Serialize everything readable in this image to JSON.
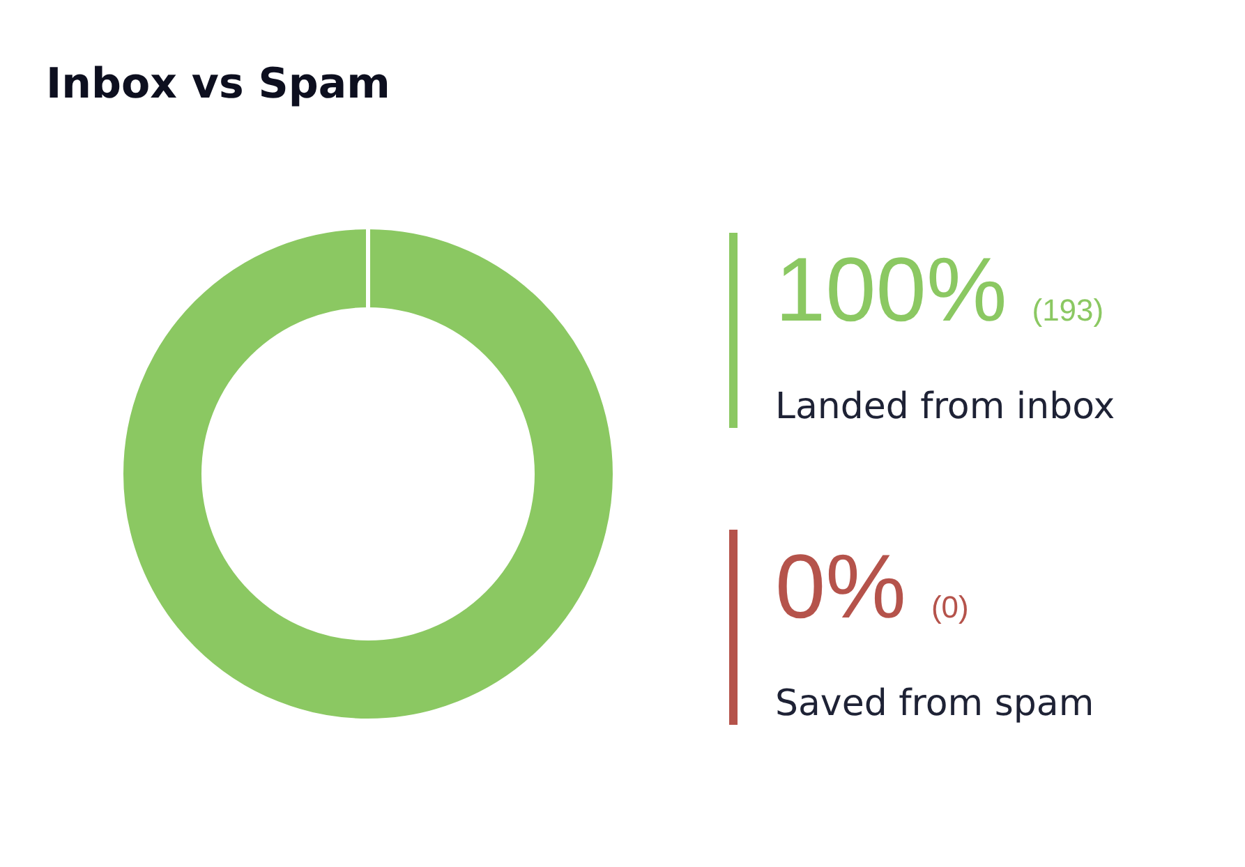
{
  "chart_data": {
    "type": "donut",
    "title": "Inbox vs Spam",
    "categories": [
      "Landed from inbox",
      "Saved from spam"
    ],
    "values": [
      100,
      0
    ],
    "colors": [
      "#8bc862",
      "#b5534b"
    ],
    "value_labels": [
      "100%",
      "0%"
    ],
    "annotations": [
      "(193)",
      "(0)"
    ]
  }
}
